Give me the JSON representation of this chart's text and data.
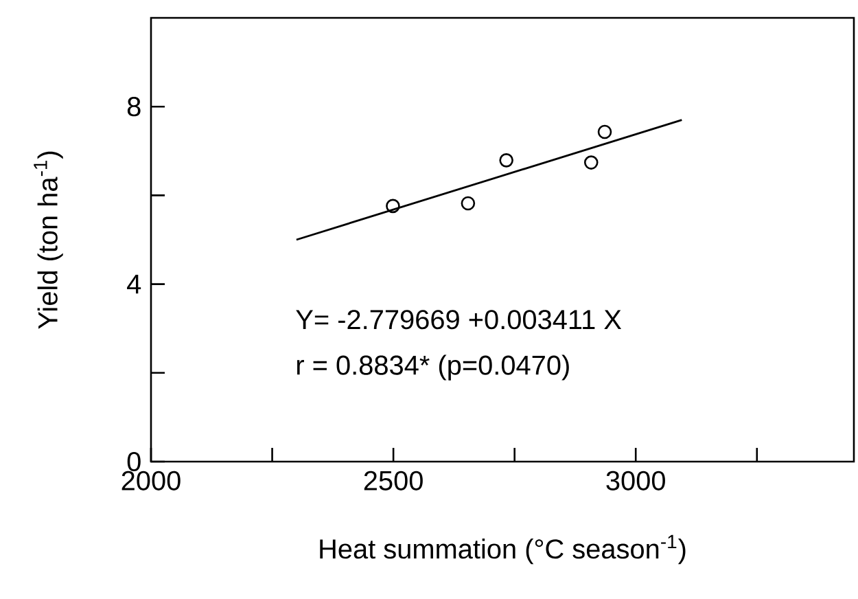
{
  "chart_data": {
    "type": "scatter",
    "xlabel": "Heat summation (°C season$^{-1}$)",
    "ylabel": "Yield (ton ha$^{-1}$)",
    "xlim": [
      2000,
      3450
    ],
    "ylim": [
      0,
      10
    ],
    "xticks": [
      2000,
      {
        "value": 2250,
        "label": null
      },
      2500,
      {
        "value": 2750,
        "label": null
      },
      3000,
      {
        "value": 3250,
        "label": null
      }
    ],
    "yticks": [
      0,
      {
        "value": 2,
        "label": null
      },
      4,
      {
        "value": 6,
        "label": null
      },
      8
    ],
    "series": [
      {
        "color": "#000000",
        "marker": "circle",
        "x": [
          2499,
          2654,
          2733,
          2908,
          2936
        ],
        "values": [
          5.76,
          5.82,
          6.79,
          6.74,
          7.43
        ]
      },
      {
        "type": "line",
        "color": "#000000",
        "line_style": "solid",
        "x": [
          2300,
          3095
        ],
        "values": [
          5.0,
          7.7
        ]
      }
    ],
    "annotations": [
      "Y= -2.779669 +0.003411 X",
      "r = 0.8834* (p=0.0470)"
    ],
    "grid": false
  }
}
